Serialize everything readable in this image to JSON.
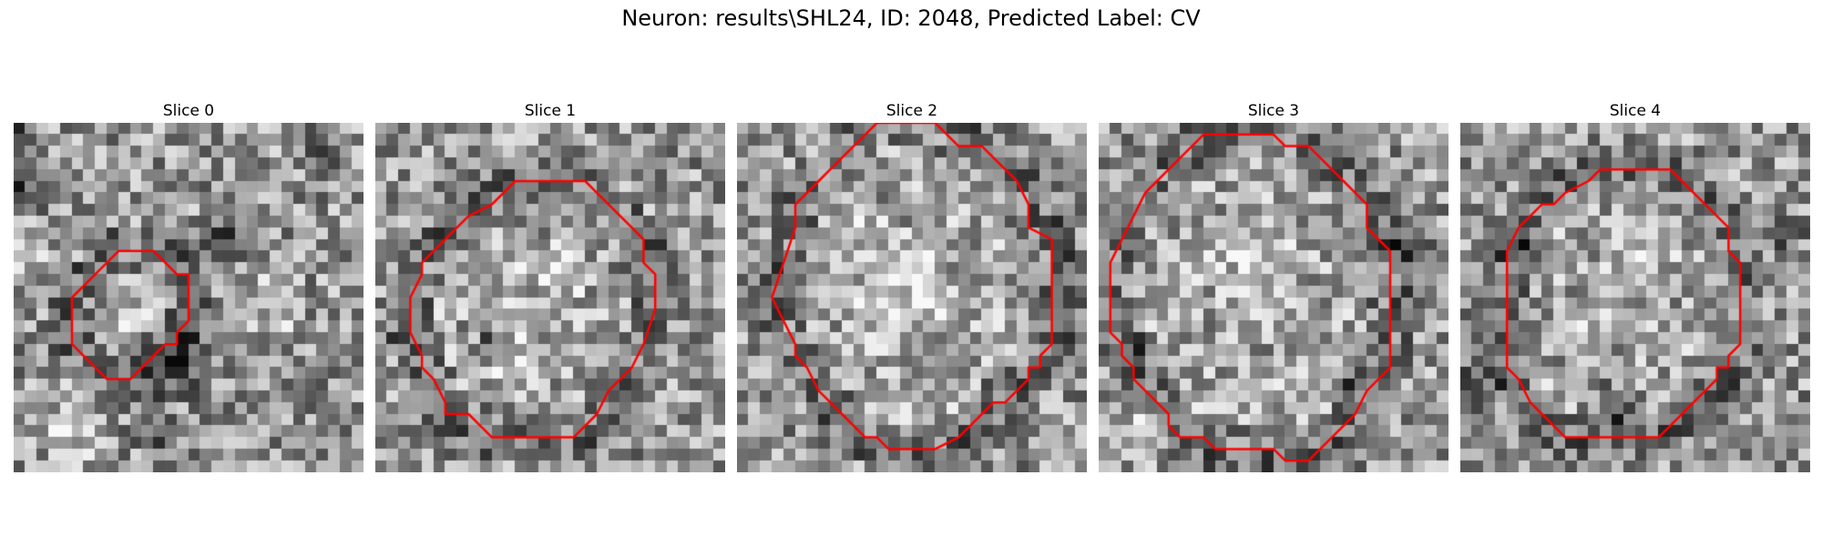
{
  "figure": {
    "title": "Neuron: results\\SHL24, ID: 2048, Predicted Label: CV"
  },
  "panels": [
    {
      "title": "Slice 0",
      "contour": [
        [
          10,
          11
        ],
        [
          12,
          11
        ],
        [
          14,
          13
        ],
        [
          15,
          13
        ],
        [
          15,
          15
        ],
        [
          15,
          17
        ],
        [
          14,
          18
        ],
        [
          14,
          19
        ],
        [
          13,
          19
        ],
        [
          12,
          20
        ],
        [
          11,
          21
        ],
        [
          10,
          22
        ],
        [
          8,
          22
        ],
        [
          7,
          21
        ],
        [
          5,
          19
        ],
        [
          5,
          17
        ],
        [
          5,
          15
        ],
        [
          7,
          13
        ],
        [
          8,
          12
        ],
        [
          9,
          11
        ]
      ],
      "dark": [
        [
          0,
          0,
          3
        ],
        [
          0,
          5,
          4
        ],
        [
          26,
          2,
          3
        ],
        [
          18,
          10,
          3
        ],
        [
          14,
          21,
          4
        ],
        [
          12,
          26,
          3
        ]
      ],
      "light": [
        [
          10,
          17,
          3
        ],
        [
          5,
          26,
          5
        ],
        [
          22,
          16,
          4
        ],
        [
          2,
          12,
          3
        ]
      ]
    },
    {
      "title": "Slice 1",
      "contour": [
        [
          10,
          7
        ],
        [
          12,
          5
        ],
        [
          18,
          5
        ],
        [
          19,
          6
        ],
        [
          20,
          7
        ],
        [
          22,
          9
        ],
        [
          23,
          10
        ],
        [
          23,
          12
        ],
        [
          24,
          13
        ],
        [
          24,
          14
        ],
        [
          24,
          16
        ],
        [
          23,
          19
        ],
        [
          22,
          21
        ],
        [
          21,
          22
        ],
        [
          20,
          23
        ],
        [
          19,
          25
        ],
        [
          17,
          27
        ],
        [
          14,
          27
        ],
        [
          13,
          27
        ],
        [
          10,
          27
        ],
        [
          9,
          26
        ],
        [
          8,
          25
        ],
        [
          6,
          25
        ],
        [
          6,
          24
        ],
        [
          5,
          22
        ],
        [
          4,
          21
        ],
        [
          4,
          20
        ],
        [
          3,
          18
        ],
        [
          3,
          17
        ],
        [
          3,
          15
        ],
        [
          4,
          13
        ],
        [
          4,
          12
        ],
        [
          5,
          11
        ],
        [
          6,
          10
        ],
        [
          7,
          9
        ],
        [
          8,
          8
        ]
      ],
      "dark": [
        [
          14,
          16,
          2
        ],
        [
          10,
          19,
          2
        ],
        [
          20,
          14,
          2
        ]
      ],
      "light": [
        [
          15,
          14,
          4
        ],
        [
          12,
          20,
          3
        ]
      ]
    },
    {
      "title": "Slice 2",
      "contour": [
        [
          10,
          2
        ],
        [
          11,
          1
        ],
        [
          12,
          0
        ],
        [
          17,
          0
        ],
        [
          18,
          1
        ],
        [
          19,
          2
        ],
        [
          21,
          2
        ],
        [
          23,
          4
        ],
        [
          24,
          5
        ],
        [
          25,
          7
        ],
        [
          25,
          9
        ],
        [
          27,
          10
        ],
        [
          27,
          11
        ],
        [
          27,
          12
        ],
        [
          27,
          14
        ],
        [
          27,
          18
        ],
        [
          27,
          19
        ],
        [
          26,
          20
        ],
        [
          26,
          21
        ],
        [
          25,
          21
        ],
        [
          25,
          22
        ],
        [
          24,
          23
        ],
        [
          23,
          24
        ],
        [
          22,
          24
        ],
        [
          21,
          25
        ],
        [
          20,
          26
        ],
        [
          19,
          27
        ],
        [
          17,
          28
        ],
        [
          13,
          28
        ],
        [
          12,
          27
        ],
        [
          11,
          27
        ],
        [
          10,
          26
        ],
        [
          9,
          25
        ],
        [
          8,
          24
        ],
        [
          7,
          23
        ],
        [
          6,
          21
        ],
        [
          5,
          20
        ],
        [
          5,
          19
        ],
        [
          4,
          17
        ],
        [
          3,
          15
        ],
        [
          4,
          12
        ],
        [
          5,
          9
        ],
        [
          5,
          7
        ],
        [
          6,
          6
        ],
        [
          7,
          5
        ],
        [
          8,
          4
        ],
        [
          9,
          3
        ]
      ],
      "dark": [
        [
          1,
          14,
          2
        ],
        [
          28,
          15,
          3
        ]
      ],
      "light": [
        [
          14,
          15,
          6
        ],
        [
          10,
          9,
          3
        ]
      ]
    },
    {
      "title": "Slice 3",
      "contour": [
        [
          9,
          1
        ],
        [
          10,
          1
        ],
        [
          14,
          1
        ],
        [
          15,
          1
        ],
        [
          16,
          2
        ],
        [
          18,
          2
        ],
        [
          19,
          3
        ],
        [
          20,
          4
        ],
        [
          21,
          5
        ],
        [
          22,
          6
        ],
        [
          23,
          7
        ],
        [
          23,
          8
        ],
        [
          23,
          9
        ],
        [
          24,
          10
        ],
        [
          25,
          11
        ],
        [
          25,
          12
        ],
        [
          25,
          13
        ],
        [
          25,
          16
        ],
        [
          25,
          18
        ],
        [
          25,
          19
        ],
        [
          25,
          20
        ],
        [
          25,
          21
        ],
        [
          24,
          22
        ],
        [
          23,
          23
        ],
        [
          22,
          25
        ],
        [
          21,
          26
        ],
        [
          20,
          27
        ],
        [
          19,
          28
        ],
        [
          18,
          29
        ],
        [
          16,
          29
        ],
        [
          15,
          28
        ],
        [
          10,
          28
        ],
        [
          9,
          27
        ],
        [
          7,
          27
        ],
        [
          6,
          26
        ],
        [
          6,
          25
        ],
        [
          5,
          24
        ],
        [
          4,
          23
        ],
        [
          3,
          22
        ],
        [
          3,
          21
        ],
        [
          2,
          20
        ],
        [
          2,
          19
        ],
        [
          1,
          18
        ],
        [
          1,
          12
        ],
        [
          2,
          10
        ],
        [
          3,
          8
        ],
        [
          4,
          6
        ],
        [
          5,
          5
        ],
        [
          6,
          4
        ],
        [
          7,
          3
        ],
        [
          8,
          2
        ]
      ],
      "dark": [
        [
          27,
          10,
          3
        ],
        [
          3,
          20,
          2
        ],
        [
          21,
          22,
          2
        ]
      ],
      "light": [
        [
          13,
          12,
          5
        ],
        [
          4,
          27,
          3
        ]
      ]
    },
    {
      "title": "Slice 4",
      "contour": [
        [
          11,
          5
        ],
        [
          12,
          4
        ],
        [
          18,
          4
        ],
        [
          19,
          5
        ],
        [
          20,
          6
        ],
        [
          21,
          7
        ],
        [
          22,
          8
        ],
        [
          23,
          9
        ],
        [
          23,
          10
        ],
        [
          23,
          11
        ],
        [
          24,
          12
        ],
        [
          24,
          15
        ],
        [
          24,
          18
        ],
        [
          24,
          19
        ],
        [
          23,
          20
        ],
        [
          23,
          21
        ],
        [
          22,
          21
        ],
        [
          22,
          22
        ],
        [
          21,
          23
        ],
        [
          20,
          24
        ],
        [
          19,
          25
        ],
        [
          18,
          26
        ],
        [
          17,
          27
        ],
        [
          16,
          27
        ],
        [
          14,
          27
        ],
        [
          9,
          27
        ],
        [
          8,
          26
        ],
        [
          7,
          25
        ],
        [
          6,
          24
        ],
        [
          5,
          22
        ],
        [
          4,
          21
        ],
        [
          4,
          19
        ],
        [
          4,
          17
        ],
        [
          4,
          14
        ],
        [
          4,
          12
        ],
        [
          4,
          11
        ],
        [
          5,
          9
        ],
        [
          6,
          8
        ],
        [
          7,
          7
        ],
        [
          8,
          7
        ],
        [
          9,
          6
        ]
      ],
      "dark": [
        [
          13,
          24,
          3
        ],
        [
          5,
          10,
          3
        ],
        [
          28,
          10,
          2
        ],
        [
          2,
          22,
          3
        ]
      ],
      "light": [
        [
          16,
          10,
          4
        ],
        [
          12,
          17,
          3
        ]
      ]
    }
  ]
}
